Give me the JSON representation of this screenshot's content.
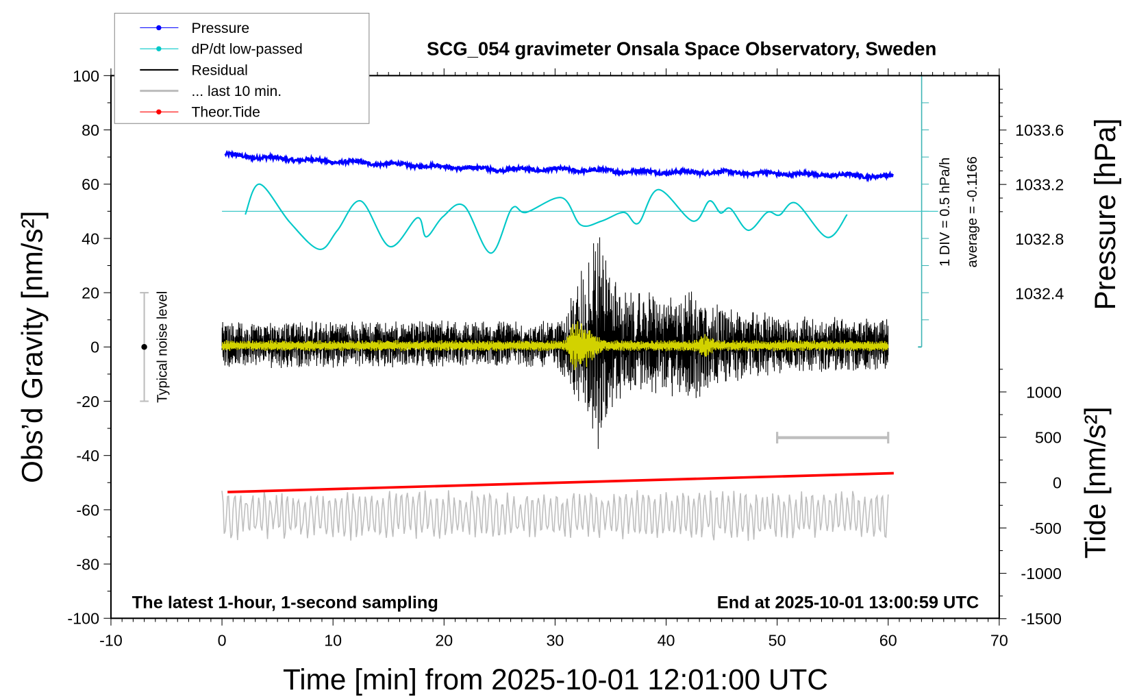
{
  "chart_data": {
    "type": "line",
    "title": "SCG_054 gravimeter Onsala Space Observatory, Sweden",
    "xlabel": "Time [min] from 2025-10-01 12:01:00 UTC",
    "ylabel": "Obs’d Gravity [nm/s²]",
    "ylabel_right_top": "Pressure [hPa]",
    "ylabel_right_bottom": "Tide [nm/s²]",
    "xlim": [
      -10,
      70
    ],
    "ylim": [
      -100,
      100
    ],
    "x_ticks": [
      "-10",
      "0",
      "10",
      "20",
      "30",
      "40",
      "50",
      "60",
      "70"
    ],
    "y_ticks": [
      "100",
      "80",
      "60",
      "40",
      "20",
      "0",
      "-20",
      "-40",
      "-60",
      "-80",
      "-100"
    ],
    "pressure_ticks": [
      "1033.6",
      "1033.2",
      "1032.8",
      "1032.4"
    ],
    "tide_ticks": [
      "1000",
      "500",
      "0",
      "-500",
      "-1000",
      "-1500"
    ],
    "legend_placement": "top-left",
    "legend": [
      {
        "label": "Pressure",
        "color": "#0000ff",
        "marker": "dot"
      },
      {
        "label": "dP/dt low-passed",
        "color": "#00c8c8",
        "marker": "dot"
      },
      {
        "label": "Residual",
        "color": "#000000",
        "marker": "line"
      },
      {
        "label": "... last 10 min.",
        "color": "#bebebe",
        "marker": "line"
      },
      {
        "label": "Theor.Tide",
        "color": "#ff0000",
        "marker": "dot"
      }
    ],
    "annotations": {
      "bottom_left": "The latest 1-hour, 1-second sampling",
      "bottom_right": "End at 2025-10-01 13:00:59 UTC",
      "noise_label": "Typical noise level",
      "dpdt_scale": "1 DIV = 0.5 hPa/h",
      "dpdt_average": "average = -0.1166"
    },
    "noise_level_range": [
      -20,
      20
    ],
    "scale_bar_10min": [
      50,
      60
    ],
    "series": [
      {
        "name": "Pressure",
        "unit": "hPa",
        "x": [
          0,
          5,
          10,
          15,
          20,
          25,
          30,
          35,
          40,
          45,
          50,
          55,
          60
        ],
        "values": [
          1033.42,
          1033.39,
          1033.37,
          1033.35,
          1033.33,
          1033.31,
          1033.31,
          1033.3,
          1033.29,
          1033.29,
          1033.28,
          1033.27,
          1033.26
        ]
      },
      {
        "name": "dP/dt low-passed",
        "unit": "hPa/h",
        "x": [
          2.1,
          3.4,
          6.1,
          8.75,
          10.4,
          12.5,
          15.1,
          17.6,
          18.4,
          19.9,
          21.8,
          24.2,
          26.1,
          27.4,
          30.6,
          32.3,
          34.2,
          36.2,
          37.5,
          39.3,
          42.4,
          43.9,
          44.9,
          45.8,
          47.4,
          49.1,
          50.2,
          51.7,
          54.5,
          56.3
        ],
        "values": [
          -0.06,
          0.5,
          -0.2,
          -0.7,
          -0.35,
          0.19,
          -0.65,
          -0.12,
          -0.47,
          -0.1,
          0.1,
          -0.77,
          0.05,
          -0.02,
          0.25,
          -0.25,
          -0.18,
          -0.02,
          -0.22,
          0.4,
          -0.18,
          0.19,
          -0.03,
          0.05,
          -0.35,
          -0.02,
          -0.07,
          0.15,
          -0.48,
          -0.06
        ]
      },
      {
        "name": "Residual",
        "unit": "nm/s²",
        "x_range": [
          0,
          60
        ],
        "amplitude_envelope": {
          "x": [
            0,
            30,
            31,
            32,
            33,
            34,
            35,
            36,
            38,
            42,
            43,
            44,
            50,
            60
          ],
          "values": [
            8,
            8,
            12,
            22,
            32,
            40,
            26,
            18,
            18,
            18,
            22,
            14,
            10,
            9
          ]
        }
      },
      {
        "name": "Residual low-passed",
        "color": "#d2d200",
        "unit": "nm/s²",
        "amplitude_envelope": {
          "x": [
            0,
            31,
            31.5,
            32.5,
            33.5,
            34.5,
            42.5,
            43.5,
            44.5,
            60
          ],
          "values": [
            2,
            2,
            9,
            9,
            5,
            2,
            2,
            5,
            2,
            2
          ]
        }
      },
      {
        "name": "... last 10 min.",
        "unit": "nm/s²",
        "center": -62,
        "amplitude": 10,
        "x_range": [
          0,
          60
        ]
      },
      {
        "name": "Theor.Tide",
        "unit": "nm/s²",
        "x": [
          0.5,
          60.5
        ],
        "values": [
          -104,
          104
        ]
      }
    ]
  }
}
